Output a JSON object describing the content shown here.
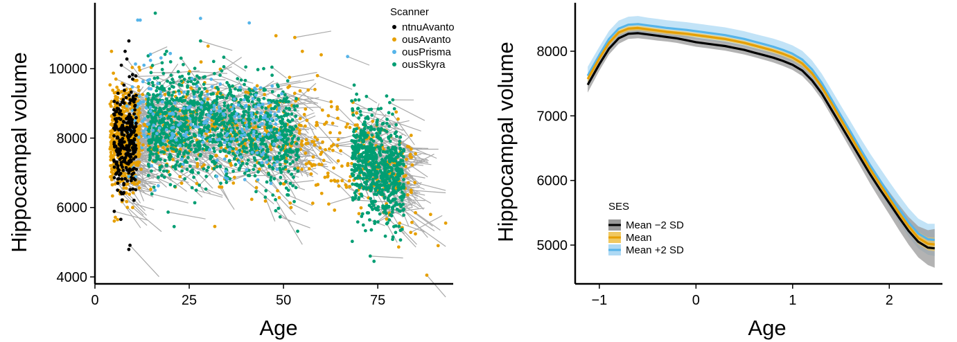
{
  "chart_data": [
    {
      "type": "scatter",
      "xlabel": "Age",
      "ylabel": "Hippocampal volume",
      "xlim": [
        0,
        95
      ],
      "ylim": [
        3800,
        11900
      ],
      "xticks": [
        0,
        25,
        50,
        75
      ],
      "yticks": [
        4000,
        6000,
        8000,
        10000
      ],
      "grid": false,
      "legend": {
        "title": "Scanner",
        "placement": "top-right",
        "entries": [
          {
            "name": "ntnuAvanto",
            "color": "#000000"
          },
          {
            "name": "ousAvanto",
            "color": "#E69F00"
          },
          {
            "name": "ousPrisma",
            "color": "#56B4E9"
          },
          {
            "name": "ousSkyra",
            "color": "#009E73"
          }
        ]
      },
      "line_color": "#aaaaaa",
      "series": [
        {
          "name": "ntnuAvanto",
          "color": "#000000",
          "age_range": [
            5,
            11
          ],
          "vol_mean": 8000,
          "vol_sd": 900,
          "n": 280,
          "points": [
            [
              8,
              10500
            ],
            [
              9,
              10800
            ],
            [
              7,
              10100
            ],
            [
              6,
              6500
            ],
            [
              10,
              9700
            ]
          ]
        },
        {
          "name": "ousAvanto",
          "color": "#E69F00",
          "age_range": [
            4,
            90
          ],
          "vol_mean": 7900,
          "vol_sd": 900,
          "n": 1100,
          "points": [
            [
              48,
              10950
            ],
            [
              53,
              10900
            ],
            [
              55,
              10500
            ],
            [
              60,
              10400
            ],
            [
              59,
              9800
            ],
            [
              93,
              5550
            ],
            [
              89,
              5800
            ],
            [
              88,
              4050
            ],
            [
              91,
              4900
            ],
            [
              85,
              7550
            ],
            [
              85,
              5850
            ],
            [
              6,
              5650
            ],
            [
              52,
              6000
            ],
            [
              62,
              6100
            ],
            [
              23,
              6700
            ],
            [
              30,
              10650
            ]
          ]
        },
        {
          "name": "ousPrisma",
          "color": "#56B4E9",
          "age_range": [
            8,
            50
          ],
          "vol_mean": 8400,
          "vol_sd": 900,
          "n": 220,
          "points": [
            [
              12,
              11400
            ],
            [
              28,
              11450
            ],
            [
              67,
              10350
            ],
            [
              47,
              9500
            ],
            [
              13,
              10100
            ],
            [
              12,
              9000
            ],
            [
              10,
              8800
            ],
            [
              14,
              8400
            ]
          ]
        },
        {
          "name": "ousSkyra",
          "color": "#009E73",
          "age_range": [
            14,
            82
          ],
          "vol_mean": 7900,
          "vol_sd": 850,
          "n": 1900,
          "points": [
            [
              16,
              11600
            ],
            [
              21,
              5450
            ],
            [
              73,
              4600
            ],
            [
              74,
              4450
            ],
            [
              70,
              9100
            ],
            [
              72,
              9200
            ],
            [
              78,
              6200
            ],
            [
              76,
              6850
            ],
            [
              28,
              10800
            ],
            [
              40,
              10050
            ],
            [
              19,
              10500
            ]
          ]
        }
      ]
    },
    {
      "type": "line",
      "xlabel": "Age",
      "ylabel": "Hippocampal volume",
      "xlim": [
        -1.25,
        2.55
      ],
      "ylim": [
        4400,
        8750
      ],
      "xticks": [
        -1,
        0,
        1,
        2
      ],
      "yticks": [
        5000,
        6000,
        7000,
        8000
      ],
      "grid": false,
      "legend": {
        "title": "SES",
        "placement": "bottom-left",
        "entries": [
          {
            "name": "Mean −2 SD",
            "color": "#000000",
            "band": "#999999"
          },
          {
            "name": "Mean",
            "color": "#E69F00",
            "band": "#F0C860"
          },
          {
            "name": "Mean +2 SD",
            "color": "#56B4E9",
            "band": "#AED9F4"
          }
        ]
      },
      "x": [
        -1.12,
        -1.0,
        -0.9,
        -0.8,
        -0.7,
        -0.6,
        -0.5,
        -0.4,
        -0.3,
        -0.2,
        -0.1,
        0.0,
        0.1,
        0.2,
        0.3,
        0.4,
        0.5,
        0.6,
        0.7,
        0.8,
        0.9,
        1.0,
        1.1,
        1.2,
        1.3,
        1.4,
        1.5,
        1.6,
        1.7,
        1.8,
        1.9,
        2.0,
        2.1,
        2.2,
        2.3,
        2.4,
        2.47
      ],
      "series": [
        {
          "name": "Mean −2 SD",
          "color": "#000000",
          "band_color": "#999999",
          "values": [
            7480,
            7800,
            8040,
            8200,
            8270,
            8280,
            8260,
            8240,
            8220,
            8200,
            8170,
            8140,
            8120,
            8100,
            8080,
            8050,
            8020,
            7980,
            7940,
            7900,
            7850,
            7790,
            7700,
            7550,
            7350,
            7100,
            6850,
            6600,
            6350,
            6100,
            5870,
            5650,
            5430,
            5220,
            5050,
            4960,
            4950
          ],
          "band_halfwidth": [
            120,
            100,
            90,
            85,
            80,
            80,
            75,
            75,
            70,
            70,
            70,
            70,
            70,
            70,
            70,
            70,
            70,
            70,
            72,
            75,
            78,
            80,
            85,
            90,
            95,
            100,
            110,
            120,
            130,
            145,
            160,
            175,
            195,
            215,
            240,
            270,
            300
          ]
        },
        {
          "name": "Mean",
          "color": "#E69F00",
          "band_color": "#F0C860",
          "values": [
            7570,
            7890,
            8130,
            8290,
            8350,
            8360,
            8340,
            8320,
            8300,
            8285,
            8270,
            8250,
            8230,
            8210,
            8190,
            8160,
            8130,
            8090,
            8050,
            8010,
            7960,
            7900,
            7810,
            7660,
            7450,
            7200,
            6940,
            6690,
            6430,
            6180,
            5950,
            5720,
            5500,
            5290,
            5110,
            5020,
            5010
          ],
          "band_halfwidth": [
            50,
            45,
            40,
            40,
            38,
            38,
            36,
            36,
            35,
            35,
            35,
            35,
            35,
            35,
            35,
            35,
            35,
            35,
            36,
            37,
            38,
            40,
            42,
            44,
            46,
            48,
            52,
            56,
            60,
            65,
            70,
            76,
            82,
            88,
            95,
            100,
            105
          ]
        },
        {
          "name": "Mean +2 SD",
          "color": "#56B4E9",
          "band_color": "#AED9F4",
          "values": [
            7620,
            7940,
            8190,
            8350,
            8410,
            8420,
            8400,
            8380,
            8360,
            8345,
            8330,
            8310,
            8290,
            8270,
            8250,
            8220,
            8190,
            8150,
            8110,
            8070,
            8020,
            7960,
            7870,
            7720,
            7510,
            7260,
            7000,
            6750,
            6490,
            6240,
            6010,
            5780,
            5560,
            5350,
            5180,
            5090,
            5080
          ],
          "band_halfwidth": [
            140,
            130,
            125,
            125,
            125,
            125,
            120,
            120,
            120,
            120,
            120,
            120,
            120,
            120,
            120,
            120,
            120,
            120,
            122,
            125,
            128,
            130,
            135,
            140,
            145,
            150,
            155,
            160,
            170,
            180,
            190,
            200,
            210,
            220,
            230,
            240,
            250
          ]
        }
      ]
    }
  ]
}
